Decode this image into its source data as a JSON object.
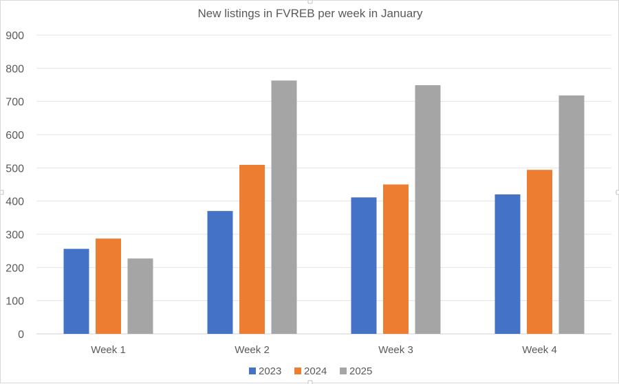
{
  "chart_data": {
    "type": "bar",
    "title": "New listings in FVREB per week in January",
    "xlabel": "",
    "ylabel": "",
    "categories": [
      "Week 1",
      "Week 2",
      "Week 3",
      "Week 4"
    ],
    "series": [
      {
        "name": "2023",
        "color": "#4472c4",
        "values": [
          256,
          370,
          411,
          420
        ]
      },
      {
        "name": "2024",
        "color": "#ed7d31",
        "values": [
          287,
          509,
          450,
          494
        ]
      },
      {
        "name": "2025",
        "color": "#a5a5a5",
        "values": [
          227,
          763,
          749,
          718
        ]
      }
    ],
    "ylim": [
      0,
      900
    ],
    "yticks": [
      "0",
      "100",
      "200",
      "300",
      "400",
      "500",
      "600",
      "700",
      "800",
      "900"
    ],
    "grid": true,
    "legend_position": "bottom"
  }
}
